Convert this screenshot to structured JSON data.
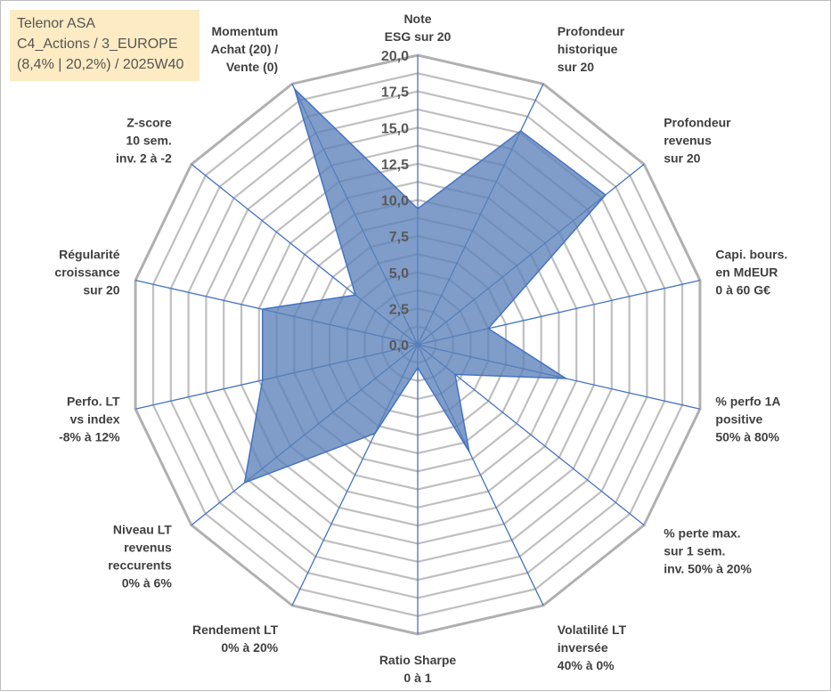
{
  "info": {
    "line1": "Telenor ASA",
    "line2": "C4_Actions / 3_EUROPE",
    "line3": "(8,4% | 20,2%) / 2025W40"
  },
  "chart_data": {
    "type": "radar",
    "title": "",
    "rmin": 0,
    "rmax": 20,
    "tick_values": [
      0,
      2.5,
      5,
      7.5,
      10,
      12.5,
      15,
      17.5,
      20
    ],
    "tick_labels": [
      "0,0",
      "2,5",
      "5,0",
      "7,5",
      "10,0",
      "12,5",
      "15,0",
      "17,5",
      "20,0"
    ],
    "categories": [
      {
        "lines": [
          "Note",
          "ESG sur 20"
        ]
      },
      {
        "lines": [
          "Profondeur",
          "historique",
          "sur 20"
        ]
      },
      {
        "lines": [
          "Profondeur",
          "revenus",
          "sur 20"
        ]
      },
      {
        "lines": [
          "Capi. bours.",
          "en MdEUR",
          "0 à 60 G€"
        ]
      },
      {
        "lines": [
          "% perfo 1A",
          "positive",
          "50% à 80%"
        ]
      },
      {
        "lines": [
          "% perte max.",
          "sur 1 sem.",
          "inv. 50% à 20%"
        ]
      },
      {
        "lines": [
          "Volatilité LT",
          "inversée",
          "40% à 0%"
        ]
      },
      {
        "lines": [
          "Ratio Sharpe",
          "0 à 1"
        ]
      },
      {
        "lines": [
          "Rendement LT",
          "0% à 20%"
        ]
      },
      {
        "lines": [
          "Niveau LT",
          "revenus",
          "reccurents",
          "0% à 6%"
        ]
      },
      {
        "lines": [
          "Perfo. LT",
          "vs index",
          "-8% à 12%"
        ]
      },
      {
        "lines": [
          "Régularité",
          "croissance",
          "sur 20"
        ]
      },
      {
        "lines": [
          "Z-score",
          "10 sem.",
          "inv. 2 à -2"
        ]
      },
      {
        "lines": [
          "Momentum",
          "Achat (20) /",
          "Vente (0)"
        ]
      }
    ],
    "series": [
      {
        "values": [
          9.4,
          16.4,
          16.6,
          5.0,
          10.5,
          3.3,
          8.2,
          1.6,
          6.8,
          15.3,
          11.0,
          11.0,
          5.5,
          19.6
        ],
        "fill": "#5b82b8",
        "fill_opacity": 0.78,
        "stroke": "#4472c4"
      }
    ],
    "grid": true,
    "grid_color": "#bfbfbf",
    "spoke_color": "#4472c4",
    "legend": "none"
  }
}
